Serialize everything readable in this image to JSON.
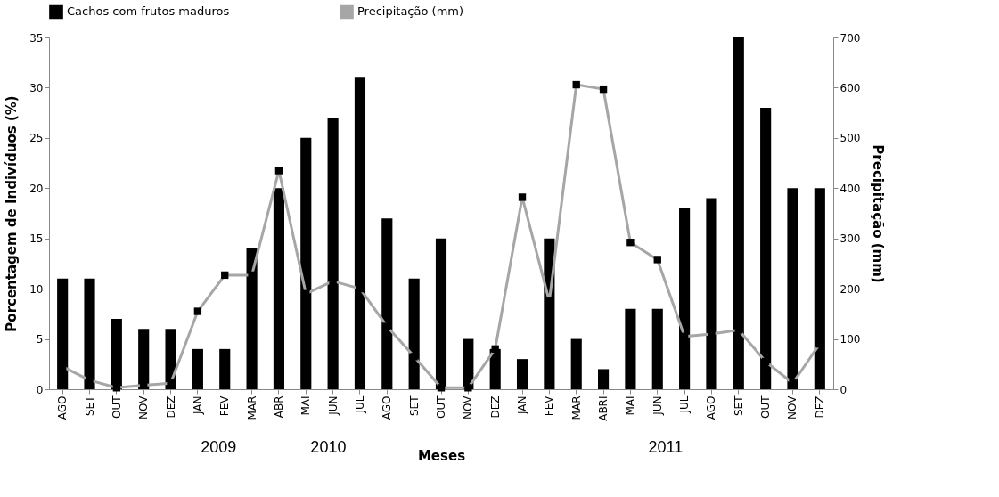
{
  "chart_data": {
    "type": "bar",
    "xlabel": "Meses",
    "ylabel": "Porcentagem de Indivíduos (%)",
    "y2label": "Precipitação (mm)",
    "categories": [
      "AGO",
      "SET",
      "OUT",
      "NOV",
      "DEZ",
      "JAN",
      "FEV",
      "MAR",
      "ABR",
      "MAI",
      "JUN",
      "JUL",
      "AGO",
      "SET",
      "OUT",
      "NOV",
      "DEZ",
      "JAN",
      "FEV",
      "MAR",
      "ABRI",
      "MAI",
      "JUN",
      "JUL",
      "AGO",
      "SET",
      "OUT",
      "NOV",
      "DEZ"
    ],
    "series": [
      {
        "name": "Cachos com frutos maduros",
        "color": "#000000",
        "values": [
          11,
          11,
          7,
          6,
          6,
          4,
          4,
          14,
          20,
          25,
          27,
          31,
          17,
          11,
          15,
          5,
          4,
          3,
          15,
          5,
          2,
          8,
          8,
          18,
          19,
          35,
          28,
          20,
          20
        ]
      },
      {
        "name": "Precipitação (mm)",
        "type": "line",
        "axis": "y2",
        "color": "#a6a6a6",
        "values": [
          45,
          18,
          3,
          8,
          12,
          155,
          227,
          227,
          435,
          190,
          215,
          200,
          125,
          65,
          3,
          3,
          80,
          382,
          175,
          606,
          597,
          292,
          258,
          105,
          110,
          118,
          55,
          12,
          90
        ]
      }
    ],
    "ylim": [
      0,
      35
    ],
    "yticks": [
      0,
      5,
      10,
      15,
      20,
      25,
      30,
      35
    ],
    "y2lim": [
      0,
      700
    ],
    "y2ticks": [
      0,
      100,
      200,
      300,
      400,
      500,
      600,
      700
    ],
    "legend": "top",
    "marker": "square",
    "grid": false,
    "annotations": [
      "2009",
      "2010",
      "2011"
    ]
  }
}
